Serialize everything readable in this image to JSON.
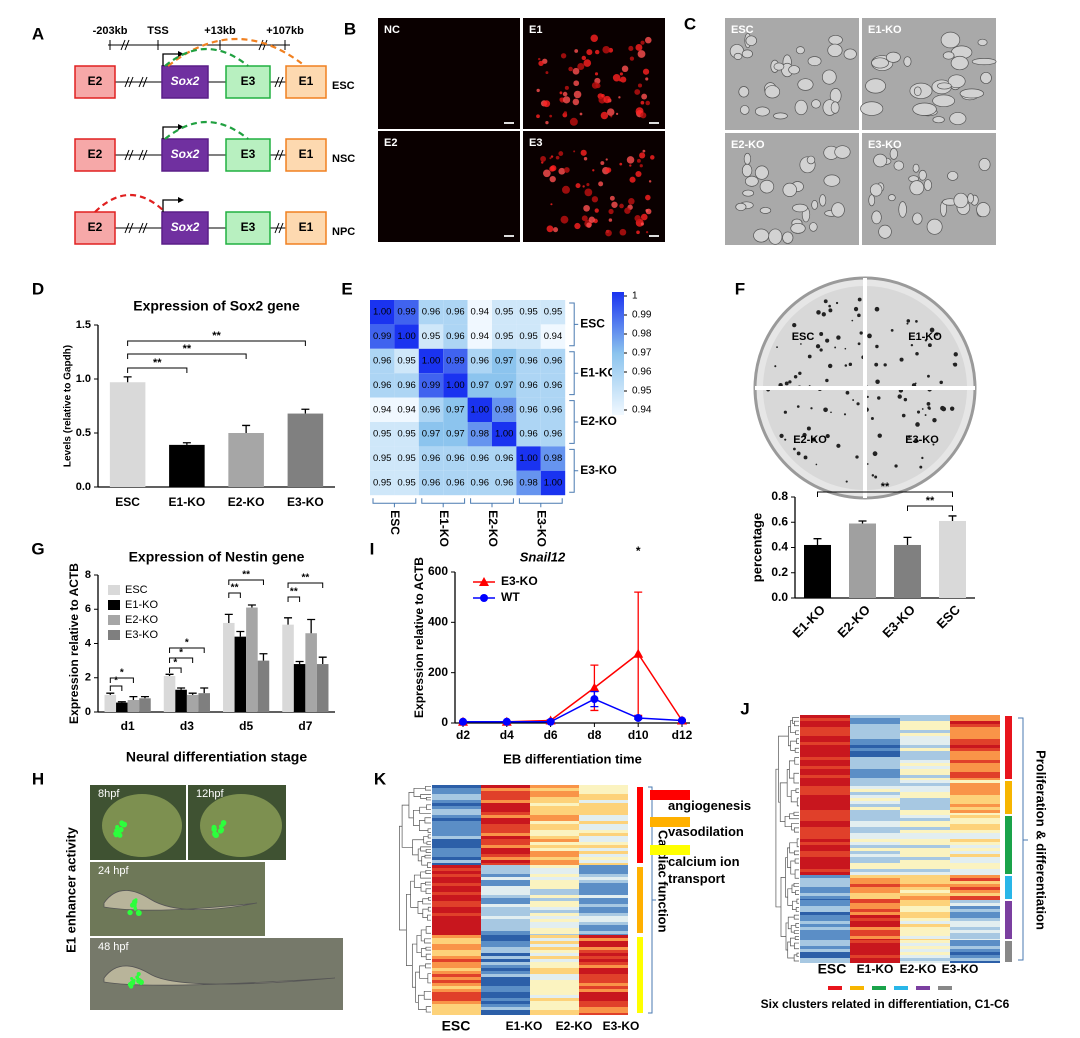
{
  "panel_labels": {
    "a": "A",
    "b": "B",
    "c": "C",
    "d": "D",
    "e": "E",
    "f": "F",
    "g": "G",
    "h": "H",
    "i": "I",
    "j": "J",
    "k": "K"
  },
  "panel_a": {
    "positions": [
      "-203kb",
      "TSS",
      "+13kb",
      "+107kb"
    ],
    "elements": [
      "E2",
      "Sox2",
      "E3",
      "E1"
    ],
    "cell_types": [
      "ESC",
      "NSC",
      "NPC"
    ]
  },
  "panel_b": {
    "images": [
      "NC",
      "E1",
      "E2",
      "E3"
    ]
  },
  "panel_c": {
    "images": [
      "ESC",
      "E1-KO",
      "E2-KO",
      "E3-KO"
    ]
  },
  "panel_d": {
    "type": "bar",
    "title": "Expression of Sox2 gene",
    "y_label": "Levels (relative to Gapdh)",
    "categories": [
      "ESC",
      "E1-KO",
      "E2-KO",
      "E3-KO"
    ],
    "values": [
      0.97,
      0.39,
      0.5,
      0.68
    ],
    "errors": [
      0.05,
      0.02,
      0.07,
      0.04
    ],
    "colors": [
      "#d9d9d9",
      "#000000",
      "#a6a6a6",
      "#808080"
    ],
    "ylim": [
      0,
      1.5
    ],
    "yticks": [
      {
        "value": 0,
        "label": "0.0"
      },
      {
        "value": 0.5,
        "label": "0.5"
      },
      {
        "value": 1,
        "label": "1.0"
      },
      {
        "value": 1.5,
        "label": "1.5"
      }
    ],
    "significance": [
      "**",
      "**",
      "**"
    ]
  },
  "panel_e": {
    "type": "heatmap",
    "groups": [
      "ESC",
      "E1-KO",
      "E2-KO",
      "E3-KO"
    ],
    "values": [
      [
        1,
        0.99,
        0.96,
        0.96,
        0.94,
        0.95,
        0.95,
        0.95
      ],
      [
        0.99,
        1,
        0.95,
        0.96,
        0.94,
        0.95,
        0.95,
        0.94
      ],
      [
        0.96,
        0.95,
        1,
        0.99,
        0.96,
        0.97,
        0.96,
        0.96
      ],
      [
        0.96,
        0.96,
        0.99,
        1,
        0.97,
        0.97,
        0.96,
        0.96
      ],
      [
        0.94,
        0.94,
        0.96,
        0.97,
        1,
        0.98,
        0.96,
        0.96
      ],
      [
        0.95,
        0.95,
        0.97,
        0.97,
        0.98,
        1,
        0.96,
        0.96
      ],
      [
        0.95,
        0.95,
        0.96,
        0.96,
        0.96,
        0.96,
        1,
        0.98
      ],
      [
        0.95,
        0.95,
        0.96,
        0.96,
        0.96,
        0.96,
        0.98,
        1
      ]
    ],
    "value_labels": [
      [
        "1.00",
        "0.99",
        "0.96",
        "0.96",
        "0.94",
        "0.95",
        "0.95",
        "0.95"
      ],
      [
        "0.99",
        "1.00",
        "0.95",
        "0.96",
        "0.94",
        "0.95",
        "0.95",
        "0.94"
      ],
      [
        "0.96",
        "0.95",
        "1.00",
        "0.99",
        "0.96",
        "0.97",
        "0.96",
        "0.96"
      ],
      [
        "0.96",
        "0.96",
        "0.99",
        "1.00",
        "0.97",
        "0.97",
        "0.96",
        "0.96"
      ],
      [
        "0.94",
        "0.94",
        "0.96",
        "0.97",
        "1.00",
        "0.98",
        "0.96",
        "0.96"
      ],
      [
        "0.95",
        "0.95",
        "0.97",
        "0.97",
        "0.98",
        "1.00",
        "0.96",
        "0.96"
      ],
      [
        "0.95",
        "0.95",
        "0.96",
        "0.96",
        "0.96",
        "0.96",
        "1.00",
        "0.98"
      ],
      [
        "0.95",
        "0.95",
        "0.96",
        "0.96",
        "0.96",
        "0.96",
        "0.98",
        "1.00"
      ]
    ],
    "clim": [
      0.94,
      1
    ],
    "colorbar_ticks": [
      1,
      0.99,
      0.98,
      0.97,
      0.96,
      0.95,
      0.94
    ]
  },
  "panel_f": {
    "plate_labels": [
      "ESC",
      "E1-KO",
      "E2-KO",
      "E3-KO"
    ],
    "chart": {
      "type": "bar",
      "y_label": "percentage",
      "categories": [
        "E1-KO",
        "E2-KO",
        "E3-KO",
        "ESC"
      ],
      "values": [
        0.42,
        0.59,
        0.42,
        0.61
      ],
      "errors": [
        0.05,
        0.02,
        0.06,
        0.04
      ],
      "colors": [
        "#000000",
        "#a0a0a0",
        "#808080",
        "#d9d9d9"
      ],
      "ylim": [
        0,
        0.8
      ],
      "yticks": [
        {
          "value": 0,
          "label": "0.0"
        },
        0.2,
        0.4,
        0.6,
        0.8
      ],
      "significance": [
        "**",
        "**"
      ]
    }
  },
  "panel_g": {
    "type": "grouped_bar",
    "title": "Expression of Nestin gene",
    "y_label": "Expression relative to ACTB",
    "x_label": "Neural differentiation stage",
    "categories": [
      "d1",
      "d3",
      "d5",
      "d7"
    ],
    "series": [
      {
        "name": "ESC",
        "color": "#d9d9d9",
        "values": [
          1.0,
          2.1,
          5.2,
          5.1
        ],
        "errors": [
          0.1,
          0.1,
          0.5,
          0.4
        ]
      },
      {
        "name": "E1-KO",
        "color": "#000000",
        "values": [
          0.55,
          1.3,
          4.4,
          2.8
        ],
        "errors": [
          0.05,
          0.1,
          0.3,
          0.15
        ]
      },
      {
        "name": "E2-KO",
        "color": "#a6a6a6",
        "values": [
          0.7,
          1.0,
          6.1,
          4.6
        ],
        "errors": [
          0.2,
          0.1,
          0.15,
          0.8
        ]
      },
      {
        "name": "E3-KO",
        "color": "#7f7f7f",
        "values": [
          0.8,
          1.1,
          3.0,
          2.8
        ],
        "errors": [
          0.1,
          0.3,
          0.4,
          0.4
        ]
      }
    ],
    "ylim": [
      0,
      8
    ],
    "yticks": [
      0,
      2,
      4,
      6,
      8
    ],
    "significance": [
      "*",
      "*",
      "*",
      "*",
      "*",
      "**",
      "**",
      "**",
      "**"
    ]
  },
  "panel_h": {
    "title": "E1 enhancer activity",
    "images": [
      "8hpf",
      "12hpf",
      "24 hpf",
      "48 hpf"
    ]
  },
  "panel_i": {
    "type": "line",
    "title": "Snail12",
    "y_label": "Expression relative to ACTB",
    "x_label": "EB differentiation time",
    "categories": [
      "d2",
      "d4",
      "d6",
      "d8",
      "d10",
      "d12"
    ],
    "series": [
      {
        "name": "E3-KO",
        "color": "#ff0000",
        "marker": "triangle",
        "values": [
          5,
          5,
          10,
          140,
          275,
          10
        ],
        "errors": [
          2,
          2,
          3,
          90,
          245,
          3
        ]
      },
      {
        "name": "WT",
        "color": "#0000ff",
        "marker": "circle",
        "values": [
          5,
          5,
          5,
          95,
          20,
          10
        ],
        "errors": [
          1,
          1,
          2,
          30,
          5,
          2
        ]
      }
    ],
    "ylim": [
      0,
      600
    ],
    "yticks": [
      0,
      200,
      400,
      600
    ],
    "significance": [
      "*"
    ]
  },
  "panel_j": {
    "type": "clustered_heatmap",
    "columns": [
      "ESC",
      "E1-KO",
      "E2-KO",
      "E3-KO"
    ],
    "annotation": "Proliferation & differentiation",
    "caption": "Six clusters related in differentiation, C1-C6",
    "cluster_colors": [
      "#e8141c",
      "#f7b500",
      "#1aa34a",
      "#29b6e8",
      "#7b3fa0",
      "#888888"
    ]
  },
  "panel_k": {
    "type": "clustered_heatmap",
    "columns": [
      "ESC",
      "E1-KO",
      "E2-KO",
      "E3-KO"
    ],
    "annotation": "Cardiac function",
    "terms": [
      {
        "label": "angiogenesis",
        "color": "#ff0000"
      },
      {
        "label": "vasodilation",
        "color": "#ffb000"
      },
      {
        "label": "calcium ion transport",
        "color": "#ffff00"
      }
    ]
  }
}
